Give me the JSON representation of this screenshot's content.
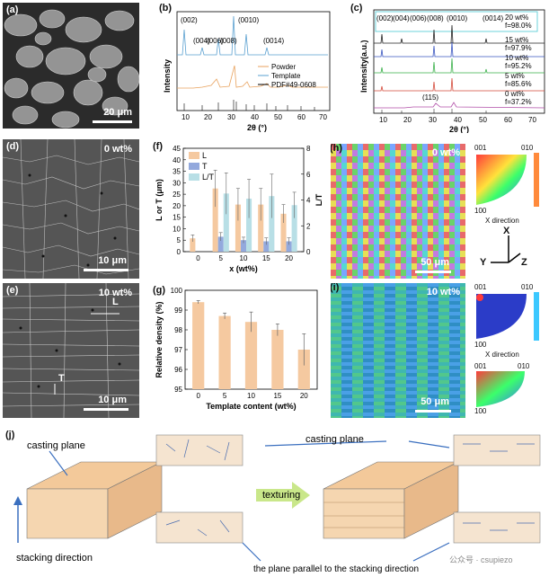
{
  "panels": {
    "a": {
      "label": "(a)",
      "scale": "20 μm"
    },
    "b": {
      "label": "(b)",
      "ylabel": "Intensity",
      "xlabel": "2θ (°)",
      "legend": [
        "Powder",
        "Template",
        "PDF#49-0608"
      ],
      "peaks": [
        "(002)",
        "(004)",
        "(006)",
        "(008)",
        "(0010)",
        "(0014)"
      ],
      "xticks": [
        "10",
        "20",
        "30",
        "40",
        "50",
        "60",
        "70"
      ]
    },
    "c": {
      "label": "(c)",
      "ylabel": "Intensity(a.u.)",
      "xlabel": "2θ (°)",
      "peaks": [
        "(002)",
        "(004)",
        "(006)",
        "(008)",
        "(0010)",
        "(0014)"
      ],
      "extra_peak": "(115)",
      "series": [
        {
          "name": "20 wt%",
          "f": "f=98.0%"
        },
        {
          "name": "15 wt%",
          "f": "f=97.9%"
        },
        {
          "name": "10 wt%",
          "f": "f=95.2%"
        },
        {
          "name": "5 wt%",
          "f": "f=85.6%"
        },
        {
          "name": "0 wt%",
          "f": "f=37.2%"
        }
      ],
      "xticks": [
        "10",
        "20",
        "30",
        "40",
        "50",
        "60",
        "70"
      ]
    },
    "d": {
      "label": "(d)",
      "tag": "0 wt%",
      "scale": "10 μm"
    },
    "e": {
      "label": "(e)",
      "tag": "10 wt%",
      "scale": "10 μm",
      "L": "L",
      "T": "T"
    },
    "h": {
      "label": "(h)",
      "tag": "0 wt%",
      "scale": "50 μm",
      "ipf_001": "001",
      "ipf_010": "010",
      "ipf_100": "100",
      "direction": "X direction",
      "axis_x": "X",
      "axis_y": "Y",
      "axis_z": "Z"
    },
    "i": {
      "label": "(i)",
      "tag": "10 wt%",
      "scale": "50 μm",
      "ipf_001": "001",
      "ipf_010": "010",
      "ipf_100": "100",
      "direction": "X direction",
      "key_001": "001",
      "key_010": "010",
      "key_100": "100"
    },
    "j": {
      "label": "(j)",
      "casting_left": "casting plane",
      "casting_right": "casting plane",
      "stacking": "stacking direction",
      "texturing": "texturing",
      "parallel": "the plane parallel to the stacking direction",
      "watermark": "公众号 · csupiezo"
    }
  },
  "chart_data": [
    {
      "panel": "f",
      "label": "(f)",
      "type": "bar",
      "xlabel": "x (wt%)",
      "ylabel": "L or T (μm)",
      "y2label": "L/T",
      "categories": [
        "0",
        "5",
        "10",
        "15",
        "20"
      ],
      "ylim": [
        0,
        45
      ],
      "yticks": [
        0,
        5,
        10,
        15,
        20,
        25,
        30,
        35,
        40,
        45
      ],
      "y2lim": [
        0,
        8
      ],
      "y2ticks": [
        0,
        2,
        4,
        6,
        8
      ],
      "series": [
        {
          "name": "L",
          "axis": "left",
          "color": "#f5c9a0",
          "values": [
            5.8,
            27.5,
            20.5,
            20.5,
            16.5
          ],
          "err": [
            1.5,
            8,
            7,
            7,
            4
          ]
        },
        {
          "name": "T",
          "axis": "left",
          "color": "#93a9dd",
          "values": [
            null,
            6.5,
            5,
            4.5,
            4.5
          ],
          "err": [
            0,
            1.8,
            1.3,
            1.5,
            1.5
          ]
        },
        {
          "name": "L/T",
          "axis": "right",
          "color": "#b8dfe6",
          "values": [
            null,
            4.5,
            4.1,
            4.3,
            3.6
          ],
          "err": [
            0,
            1.6,
            1.5,
            1.7,
            1.0
          ]
        }
      ]
    },
    {
      "panel": "g",
      "label": "(g)",
      "type": "bar",
      "xlabel": "Template content (wt%)",
      "ylabel": "Relative density (%)",
      "categories": [
        "0",
        "5",
        "10",
        "15",
        "20"
      ],
      "ylim": [
        95,
        100
      ],
      "yticks": [
        95,
        96,
        97,
        98,
        99,
        100
      ],
      "series": [
        {
          "name": "",
          "color": "#f5c9a0",
          "values": [
            99.4,
            98.7,
            98.4,
            98.0,
            97.0
          ],
          "err": [
            0.08,
            0.15,
            0.5,
            0.3,
            0.8
          ]
        }
      ]
    }
  ]
}
